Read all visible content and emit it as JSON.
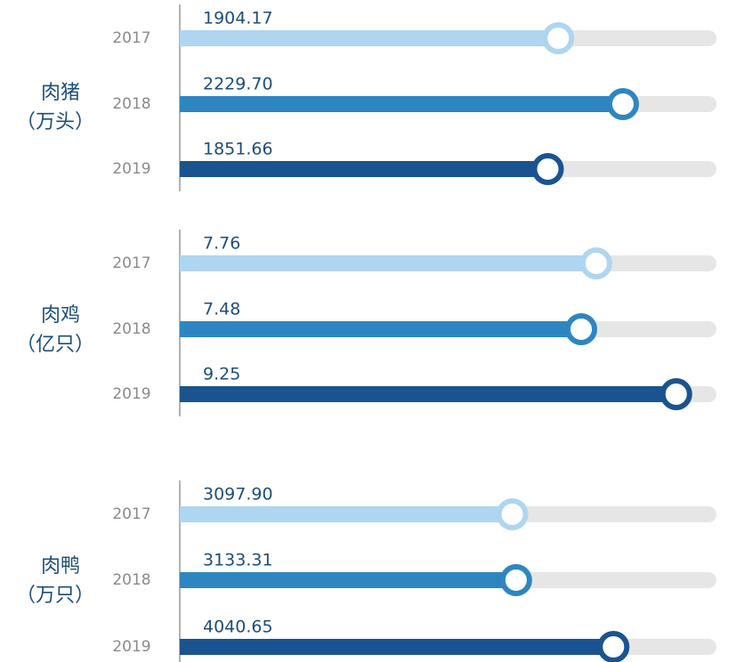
{
  "chart_data": [
    {
      "type": "bar",
      "title": "肉猪",
      "subtitle": "（万头）",
      "categories": [
        "2017",
        "2018",
        "2019"
      ],
      "values": [
        1904.17,
        2229.7,
        1851.66
      ],
      "value_labels": [
        "1904.17",
        "2229.70",
        "1851.66"
      ],
      "colors": [
        "#aed6f1",
        "#2e86c1",
        "#1a5490"
      ],
      "track_color": "#e6e6e6",
      "xlim": [
        0,
        2700
      ]
    },
    {
      "type": "bar",
      "title": "肉鸡",
      "subtitle": "（亿只）",
      "categories": [
        "2017",
        "2018",
        "2019"
      ],
      "values": [
        7.76,
        7.48,
        9.25
      ],
      "value_labels": [
        "7.76",
        "7.48",
        "9.25"
      ],
      "colors": [
        "#aed6f1",
        "#2e86c1",
        "#1a5490"
      ],
      "track_color": "#e6e6e6",
      "xlim": [
        0,
        10
      ]
    },
    {
      "type": "bar",
      "title": "肉鸭",
      "subtitle": "（万只）",
      "categories": [
        "2017",
        "2018",
        "2019"
      ],
      "values": [
        3097.9,
        3133.31,
        4040.65
      ],
      "value_labels": [
        "3097.90",
        "3133.31",
        "4040.65"
      ],
      "colors": [
        "#aed6f1",
        "#2e86c1",
        "#1a5490"
      ],
      "track_color": "#e6e6e6",
      "xlim": [
        0,
        5000
      ]
    }
  ]
}
